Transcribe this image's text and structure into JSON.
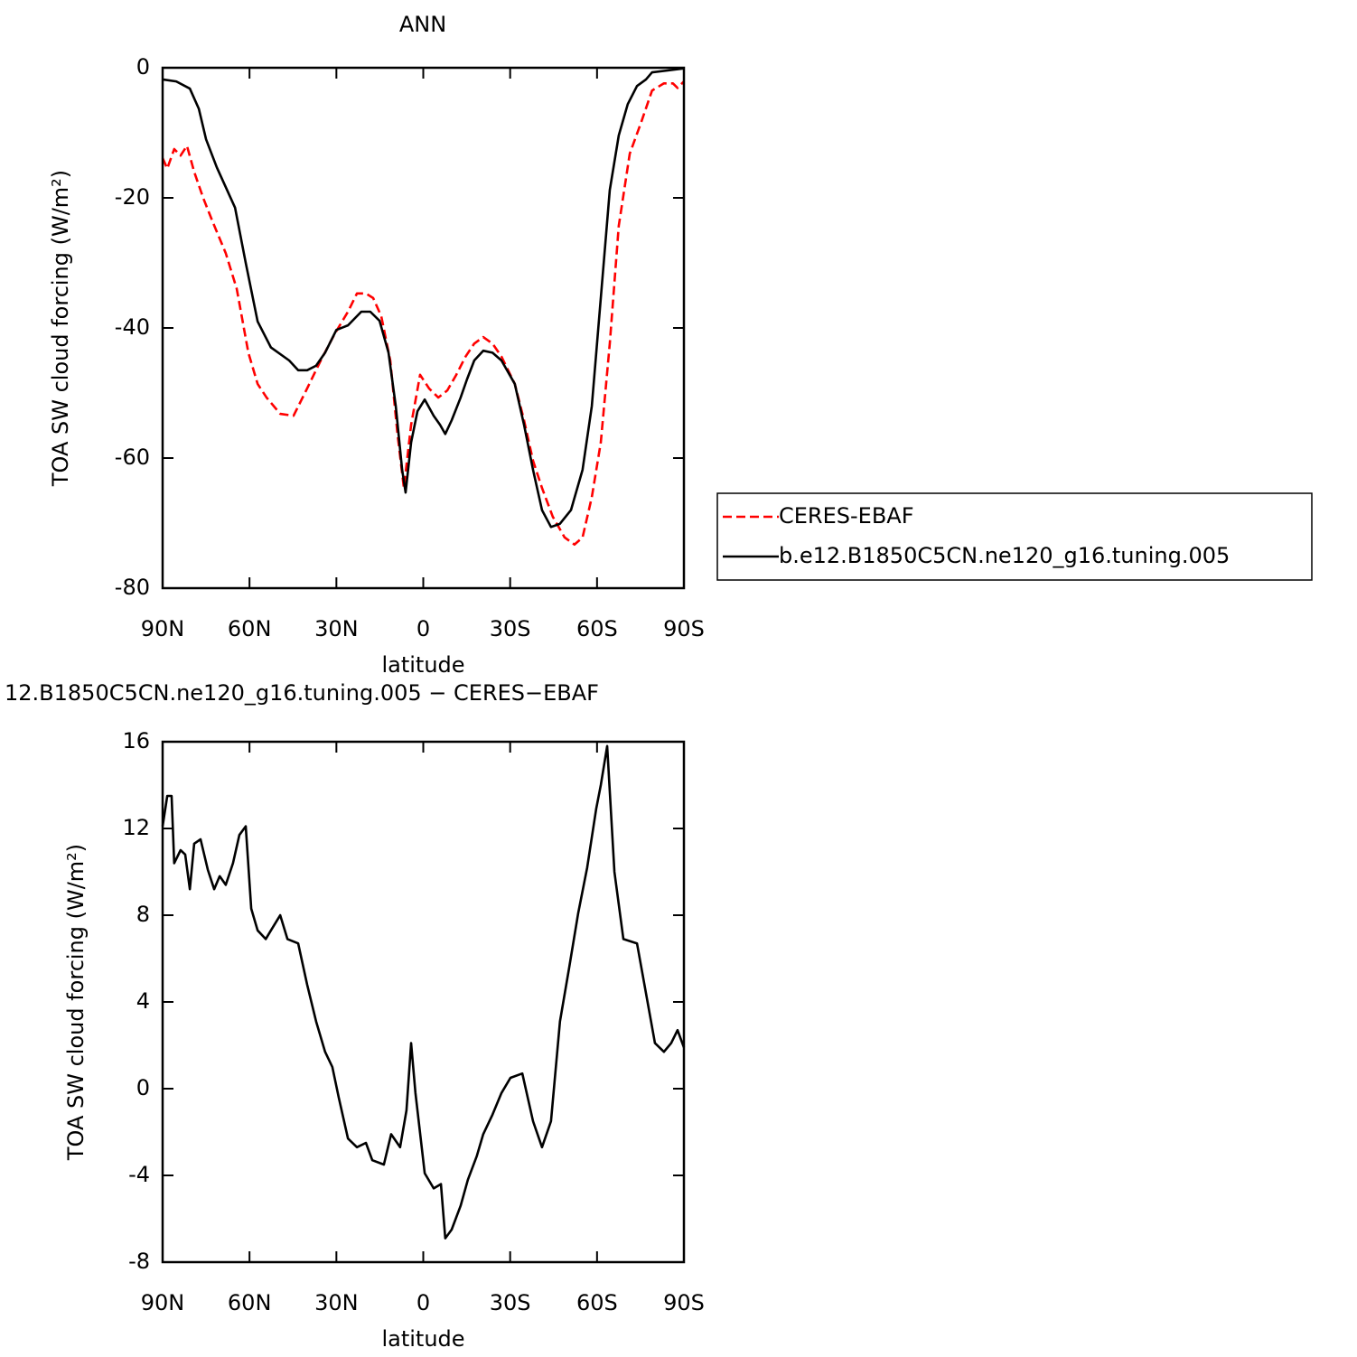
{
  "chart_data": [
    {
      "type": "line",
      "title": "ANN",
      "xlabel": "latitude",
      "ylabel": "TOA SW cloud forcing (W/m²)",
      "xlim": [
        90,
        -90
      ],
      "xticks": [
        {
          "value": 90,
          "label": "90N"
        },
        {
          "value": 60,
          "label": "60N"
        },
        {
          "value": 30,
          "label": "30N"
        },
        0,
        {
          "value": -30,
          "label": "30S"
        },
        {
          "value": -60,
          "label": "60S"
        },
        {
          "value": -90,
          "label": "90S"
        }
      ],
      "ylim": [
        -80,
        0
      ],
      "yticks": [
        -80,
        -60,
        -40,
        -20,
        0
      ],
      "legend": "right",
      "series": [
        {
          "name": "CERES-EBAF",
          "color": "#ff0000",
          "linestyle": "dashed",
          "x": [
            90,
            88.4,
            86,
            83.8,
            81.6,
            79.1,
            76,
            72.8,
            68.2,
            64.4,
            60.4,
            57.2,
            54.1,
            49.4,
            44.8,
            40.1,
            35.4,
            30.7,
            26,
            22.9,
            19.8,
            17.3,
            14.5,
            11.4,
            8.9,
            6.7,
            4.2,
            1.1,
            -2,
            -5.2,
            -8.3,
            -11.4,
            -14.6,
            -17.6,
            -20.7,
            -23.9,
            -27,
            -31.6,
            -34.8,
            -37.9,
            -41,
            -44.7,
            -48.8,
            -52.2,
            -55,
            -58.2,
            -61.3,
            -64.4,
            -67.5,
            -71.3,
            -75.3,
            -79,
            -83.1,
            -86.2,
            -87.8,
            -90
          ],
          "values": [
            -13.9,
            -15.5,
            -12.5,
            -13.5,
            -12,
            -16,
            -20,
            -23.6,
            -28.5,
            -34,
            -43.8,
            -48.6,
            -50.7,
            -53.2,
            -53.5,
            -49.3,
            -45,
            -41,
            -37.5,
            -34.7,
            -34.7,
            -35.4,
            -38.2,
            -45,
            -56.3,
            -64.6,
            -54.9,
            -47.2,
            -49.3,
            -50.7,
            -49.6,
            -47.2,
            -44.4,
            -42.4,
            -41.4,
            -42.4,
            -44.4,
            -48.6,
            -54.2,
            -60.4,
            -64.6,
            -69,
            -72.2,
            -73.3,
            -72.2,
            -66,
            -57.6,
            -42.4,
            -24.3,
            -13.2,
            -8.3,
            -3.5,
            -2.4,
            -2.4,
            -3.1,
            -2.1
          ]
        },
        {
          "name": "b.e12.B1850C5CN.ne120_g16.tuning.005",
          "color": "#000000",
          "linestyle": "solid",
          "x": [
            90,
            85.3,
            80.6,
            77.5,
            75,
            71.3,
            65,
            61.3,
            57.2,
            52.6,
            46.3,
            43.2,
            40.1,
            37,
            33.9,
            30,
            26,
            21.4,
            18.3,
            15.1,
            12,
            9.5,
            7.3,
            6.1,
            4.2,
            2,
            -0.5,
            -3.6,
            -5.8,
            -7.6,
            -9.8,
            -12.9,
            -15.1,
            -17.6,
            -20.7,
            -23.9,
            -27,
            -31.6,
            -34.8,
            -37.9,
            -41,
            -44.1,
            -47.2,
            -51,
            -55,
            -58.2,
            -61.3,
            -64.4,
            -67.5,
            -70.6,
            -73.8,
            -76.9,
            -79,
            -84.7,
            -90
          ],
          "values": [
            -1.8,
            -2.1,
            -3.2,
            -6.3,
            -11,
            -15.3,
            -21.5,
            -30,
            -39,
            -43,
            -45,
            -46.5,
            -46.5,
            -45.8,
            -43.8,
            -40.3,
            -39.6,
            -37.5,
            -37.5,
            -38.9,
            -43.8,
            -52,
            -61.8,
            -65.3,
            -57.6,
            -52.8,
            -51,
            -53.5,
            -54.9,
            -56.3,
            -54.2,
            -50.7,
            -47.9,
            -45,
            -43.5,
            -43.8,
            -45,
            -48.6,
            -54.9,
            -61.8,
            -68,
            -70.6,
            -70.1,
            -68,
            -61.8,
            -52,
            -35.4,
            -18.8,
            -10.4,
            -5.6,
            -2.8,
            -1.8,
            -0.7,
            -0.4,
            -0.1
          ]
        }
      ]
    },
    {
      "type": "line",
      "title": "12.B1850C5CN.ne120_g16.tuning.005 − CERES−EBAF",
      "xlabel": "latitude",
      "ylabel": "TOA SW cloud forcing (W/m²)",
      "xlim": [
        90,
        -90
      ],
      "xticks": [
        {
          "value": 90,
          "label": "90N"
        },
        {
          "value": 60,
          "label": "60N"
        },
        {
          "value": 30,
          "label": "30N"
        },
        0,
        {
          "value": -30,
          "label": "30S"
        },
        {
          "value": -60,
          "label": "60S"
        },
        {
          "value": -90,
          "label": "90S"
        }
      ],
      "ylim": [
        -8,
        16
      ],
      "yticks": [
        -8,
        -4,
        0,
        4,
        8,
        12,
        16
      ],
      "series": [
        {
          "color": "#000000",
          "linestyle": "solid",
          "x": [
            90,
            88.4,
            86.9,
            86,
            83.8,
            82.2,
            80.6,
            79.1,
            76.9,
            74.4,
            72.2,
            70.3,
            68.2,
            65.7,
            63.5,
            61.3,
            59.4,
            57.2,
            54.4,
            52.6,
            49.4,
            46.9,
            43.2,
            40.1,
            37,
            33.9,
            31.4,
            29.2,
            26,
            22.9,
            19.8,
            17.6,
            13.6,
            11.1,
            8,
            5.8,
            4.2,
            2.7,
            -0.5,
            -3.6,
            -6.1,
            -7.6,
            -9.8,
            -12.9,
            -15.4,
            -18.5,
            -20.7,
            -23.9,
            -27,
            -30.1,
            -34.2,
            -37.9,
            -41,
            -44.1,
            -47.2,
            -50.4,
            -53.5,
            -56.6,
            -59.7,
            -61.3,
            -63.5,
            -66,
            -69.1,
            -73.8,
            -76.9,
            -80,
            -83.1,
            -85.6,
            -87.8,
            -90
          ],
          "values": [
            12.1,
            13.5,
            13.5,
            10.4,
            11,
            10.8,
            9.2,
            11.3,
            11.5,
            10.1,
            9.2,
            9.8,
            9.4,
            10.4,
            11.7,
            12.1,
            8.3,
            7.3,
            6.9,
            7.3,
            8,
            6.9,
            6.7,
            4.8,
            3.1,
            1.7,
            1.0,
            -0.4,
            -2.3,
            -2.7,
            -2.5,
            -3.3,
            -3.5,
            -2.1,
            -2.7,
            -1.0,
            2.1,
            -0.2,
            -3.9,
            -4.6,
            -4.4,
            -6.9,
            -6.5,
            -5.4,
            -4.2,
            -3.1,
            -2.1,
            -1.2,
            -0.2,
            0.5,
            0.7,
            -1.5,
            -2.7,
            -1.5,
            3.1,
            5.6,
            8.1,
            10.2,
            12.9,
            14,
            15.8,
            10,
            6.9,
            6.7,
            4.4,
            2.1,
            1.7,
            2.1,
            2.7,
            1.9
          ]
        }
      ]
    }
  ]
}
